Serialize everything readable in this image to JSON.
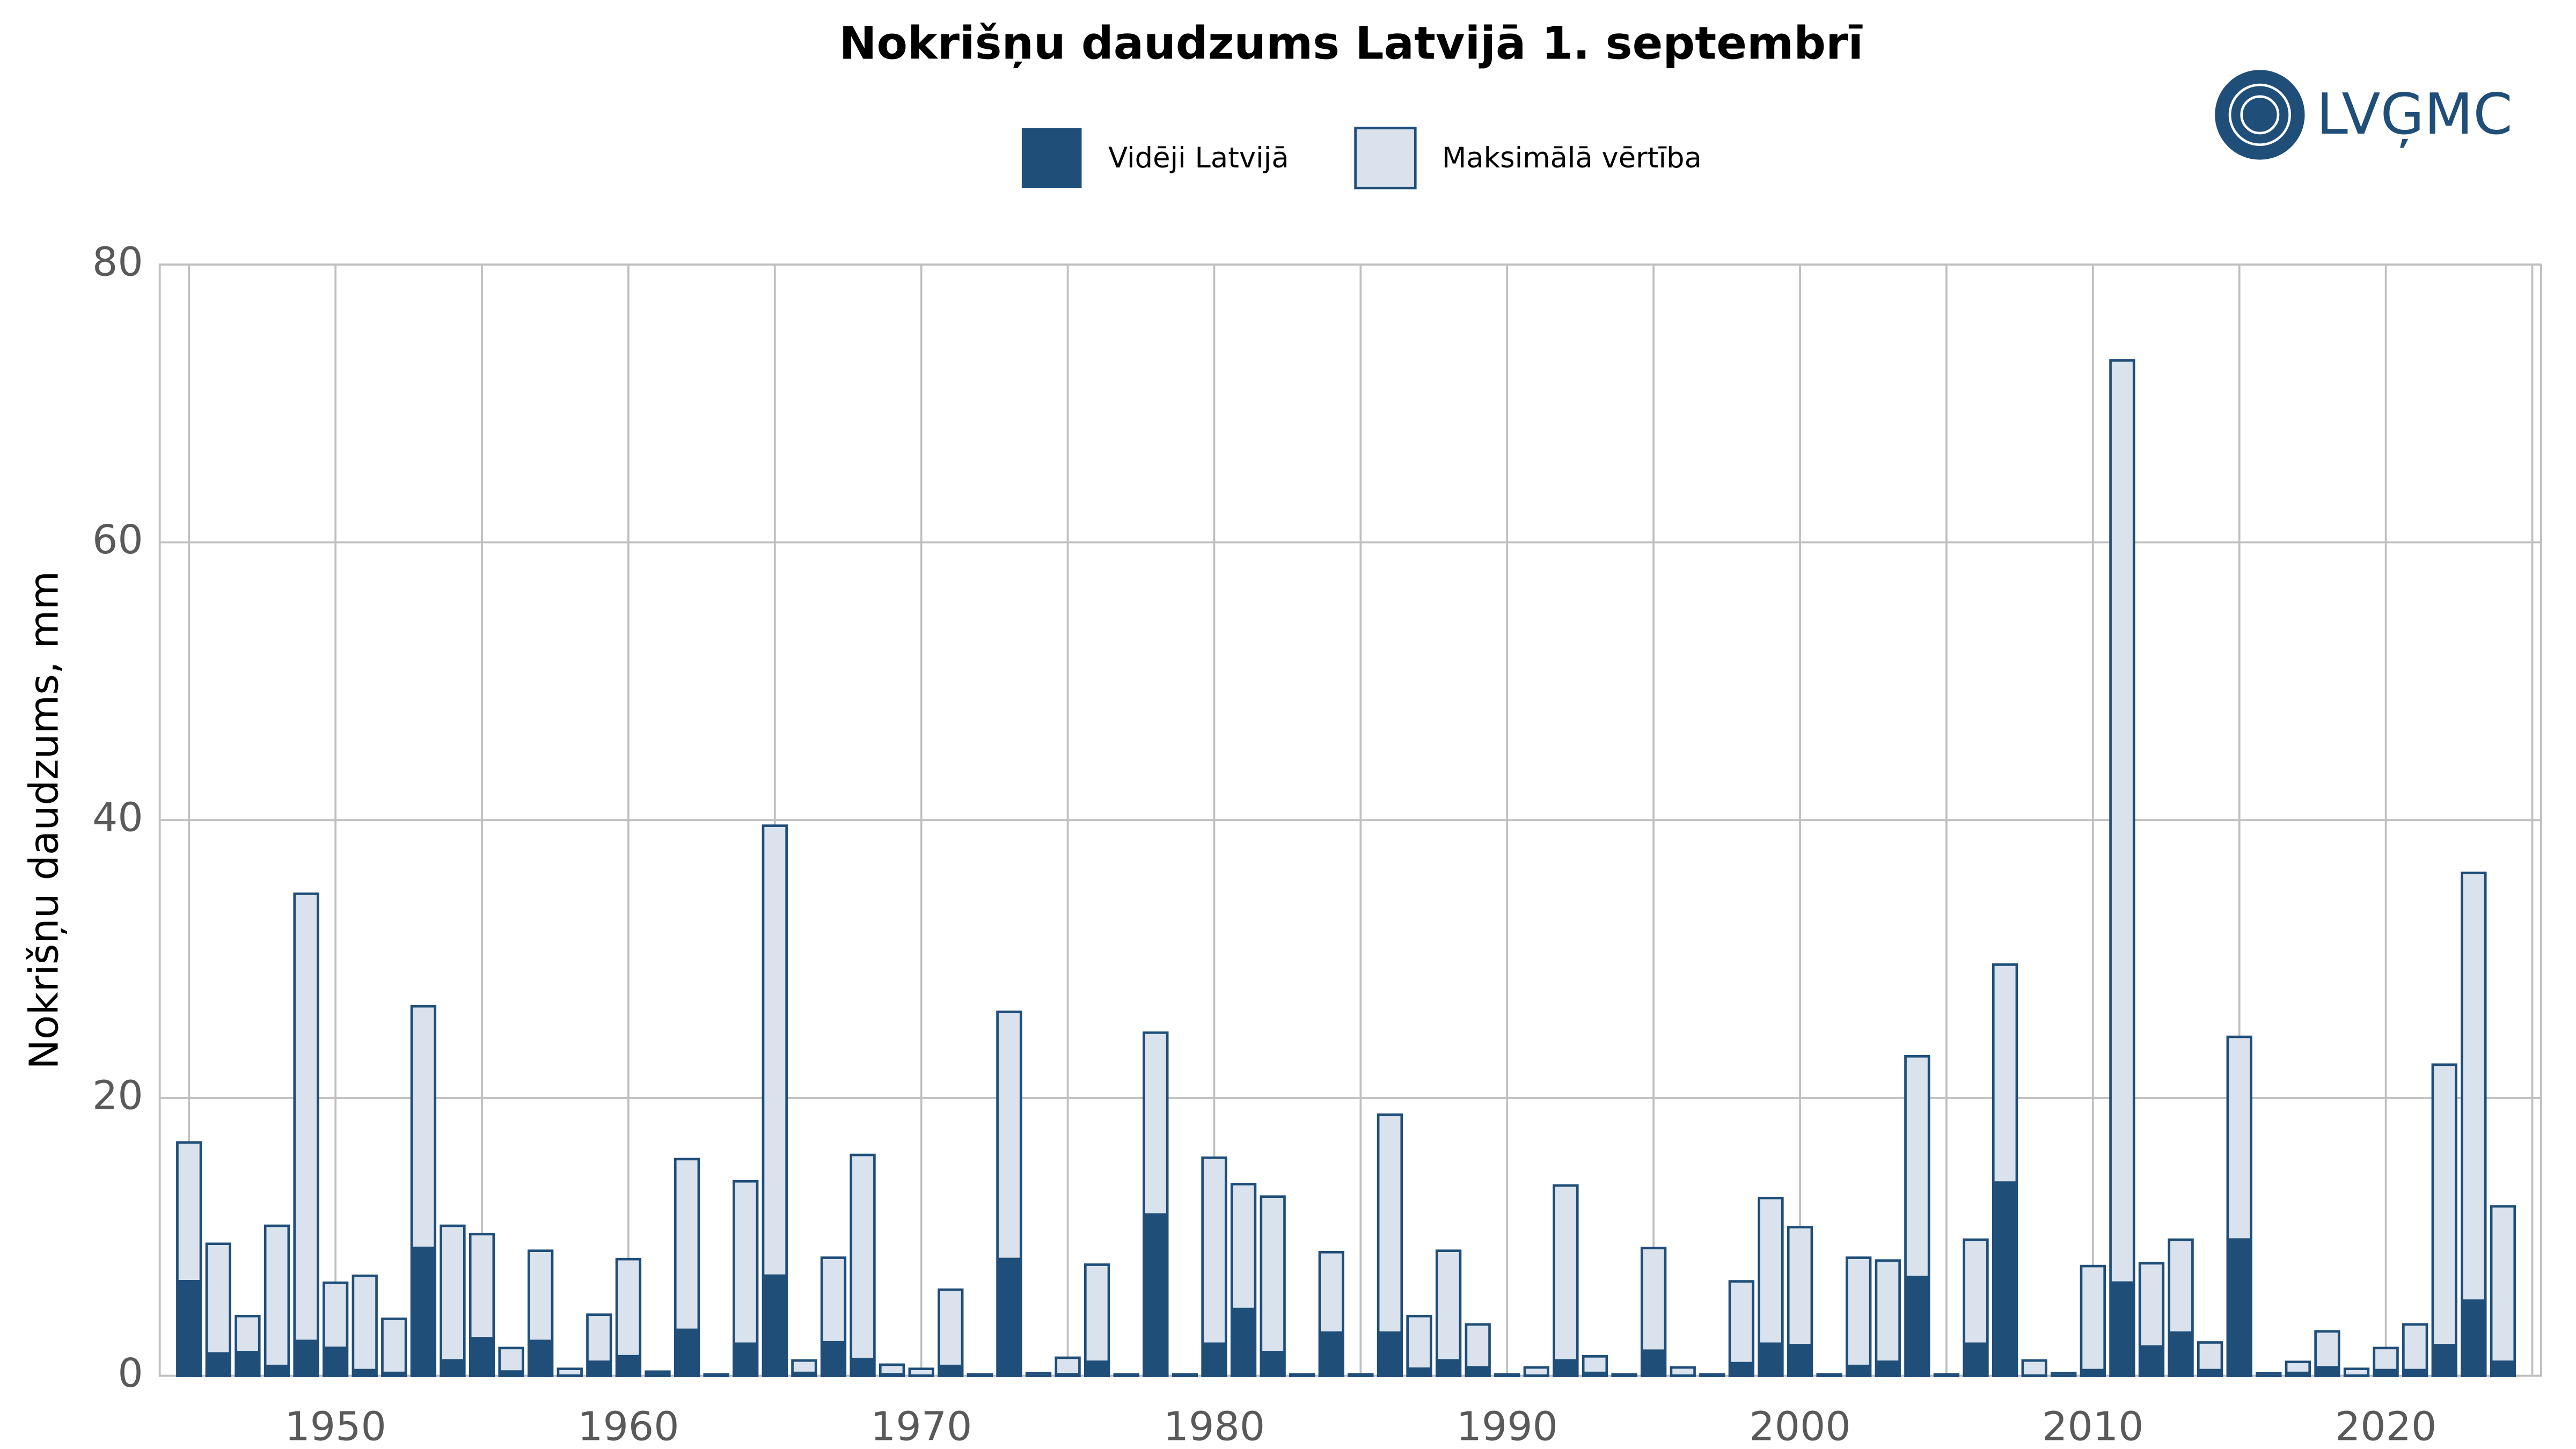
{
  "chart_data": {
    "type": "bar",
    "overlay": true,
    "title": "Nokrišņu daudzums Latvijā 1. septembrī",
    "ylabel": "Nokrišņu daudzums, mm",
    "logo": "LVĢMC",
    "x": [
      1945,
      1946,
      1947,
      1948,
      1949,
      1950,
      1951,
      1952,
      1953,
      1954,
      1955,
      1956,
      1957,
      1958,
      1959,
      1960,
      1961,
      1962,
      1963,
      1964,
      1965,
      1966,
      1967,
      1968,
      1969,
      1970,
      1971,
      1972,
      1973,
      1974,
      1975,
      1976,
      1977,
      1978,
      1979,
      1980,
      1981,
      1982,
      1983,
      1984,
      1985,
      1986,
      1987,
      1988,
      1989,
      1990,
      1991,
      1992,
      1993,
      1994,
      1995,
      1996,
      1997,
      1998,
      1999,
      2000,
      2001,
      2002,
      2003,
      2004,
      2005,
      2006,
      2007,
      2008,
      2009,
      2010,
      2011,
      2012,
      2013,
      2014,
      2015,
      2016,
      2017,
      2018,
      2019,
      2020,
      2021,
      2022,
      2023,
      2024
    ],
    "series": [
      {
        "name": "Vidēji Latvijā",
        "color": "#1f4e79",
        "values": [
          6.9,
          1.7,
          1.8,
          0.8,
          2.6,
          2.1,
          0.5,
          0.3,
          9.3,
          1.2,
          2.8,
          0.4,
          2.6,
          0.1,
          1.1,
          1.5,
          0.2,
          3.4,
          0.05,
          2.4,
          7.3,
          0.3,
          2.5,
          1.3,
          0.2,
          0.1,
          0.8,
          0.05,
          8.5,
          0.1,
          0.2,
          1.1,
          0.05,
          11.7,
          0,
          2.4,
          4.9,
          1.8,
          0,
          3.2,
          0,
          3.2,
          0.6,
          1.2,
          0.7,
          0,
          0.1,
          1.2,
          0.3,
          0,
          1.9,
          0.1,
          0,
          1.0,
          2.4,
          2.3,
          0,
          0.8,
          1.1,
          7.2,
          0,
          2.4,
          14.0,
          0.1,
          0.1,
          0.5,
          6.8,
          2.2,
          3.2,
          0.5,
          9.9,
          0.1,
          0.3,
          0.7,
          0.1,
          0.5,
          0.5,
          2.3,
          5.5,
          1.1
        ]
      },
      {
        "name": "Maksimālā vērtība",
        "color": "#dae3ed",
        "edge": "#1f4e79",
        "values": [
          16.8,
          9.5,
          4.3,
          10.8,
          34.7,
          6.7,
          7.2,
          4.1,
          26.6,
          10.8,
          10.2,
          2.0,
          9.0,
          0.5,
          4.4,
          8.4,
          0.3,
          15.6,
          0.1,
          14.0,
          39.6,
          1.1,
          8.5,
          15.9,
          0.8,
          0.5,
          6.2,
          0.1,
          26.2,
          0.2,
          1.3,
          8.0,
          0.1,
          24.7,
          0.1,
          15.7,
          13.8,
          12.9,
          0.1,
          8.9,
          0.1,
          18.8,
          4.3,
          9.0,
          3.7,
          0.1,
          0.6,
          13.7,
          1.4,
          0.1,
          9.2,
          0.6,
          0.1,
          6.8,
          12.8,
          10.7,
          0.1,
          8.5,
          8.3,
          23.0,
          0.1,
          9.8,
          29.6,
          1.1,
          0.2,
          7.9,
          73.1,
          8.1,
          9.8,
          2.4,
          24.4,
          0.2,
          1.0,
          3.2,
          0.5,
          2.0,
          3.7,
          22.4,
          36.2,
          12.2
        ]
      }
    ],
    "xlim": [
      1944,
      2025.3
    ],
    "xticks": [
      1950,
      1960,
      1970,
      1980,
      1990,
      2000,
      2010,
      2020
    ],
    "ylim": [
      0,
      80
    ],
    "yticks": [
      0,
      20,
      40,
      60,
      80
    ],
    "grid": true,
    "legend": "top"
  }
}
